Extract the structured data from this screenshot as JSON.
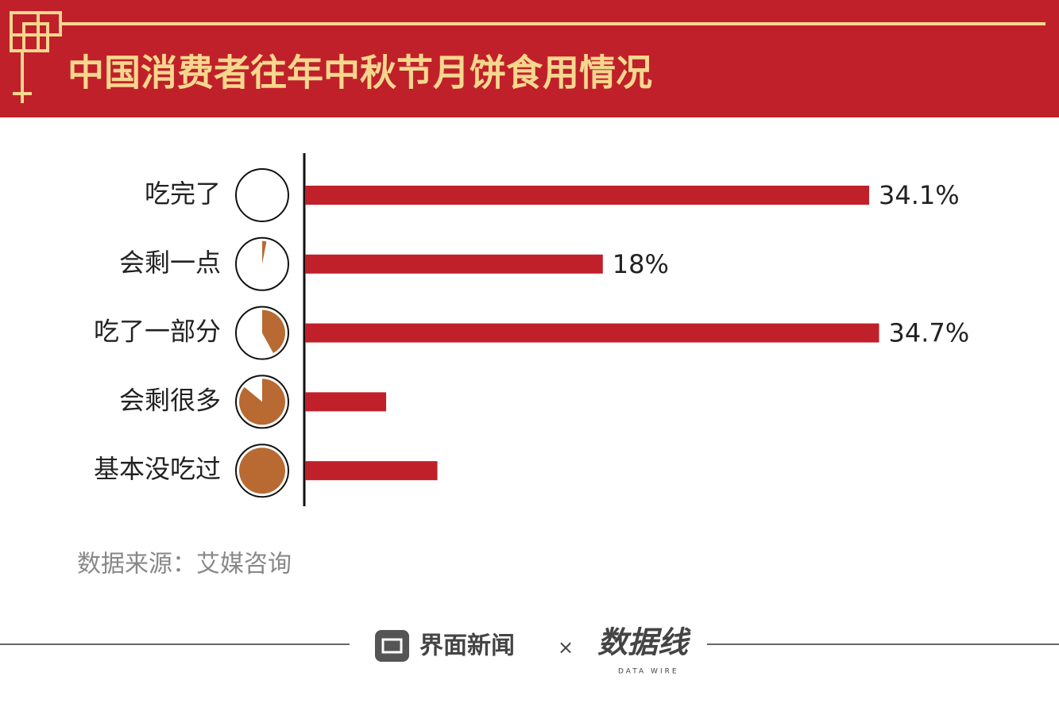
{
  "chart_data": {
    "type": "hbar",
    "title": "中国消费者往年中秋节月饼食用情况",
    "categories": [
      "吃完了",
      "会剩一点",
      "吃了一部分",
      "会剩很多",
      "基本没吃过"
    ],
    "values": [
      34.1,
      18,
      34.7,
      4.9,
      8.0
    ],
    "value_labels": [
      "34.1%",
      "18%",
      "34.7%",
      null,
      null
    ],
    "color": "#c0202a",
    "xlim": [
      0,
      45
    ],
    "source": "数据来源：艾媒咨询"
  },
  "footer": {
    "brand": "界面新闻",
    "separator": "×",
    "logo": "数据线",
    "logo_sub": "DATA WIRE"
  }
}
